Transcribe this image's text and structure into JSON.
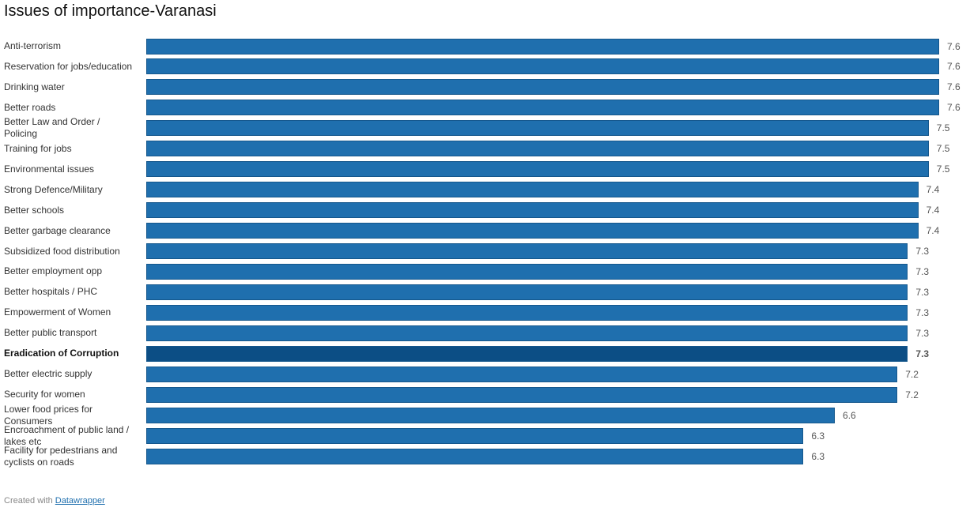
{
  "chart_data": {
    "type": "bar",
    "orientation": "horizontal",
    "title": "Issues of importance-Varanasi",
    "categories": [
      "Anti-terrorism",
      "Reservation for jobs/education",
      "Drinking water",
      "Better roads",
      "Better Law and Order / Policing",
      "Training for jobs",
      "Environmental issues",
      "Strong Defence/Military",
      "Better schools",
      "Better garbage clearance",
      "Subsidized food distribution",
      "Better employment opp",
      "Better hospitals / PHC",
      "Empowerment of Women",
      "Better public transport",
      "Eradication of Corruption",
      "Better electric supply",
      "Security for women",
      "Lower food prices for Consumers",
      "Encroachment of public land / lakes etc",
      "Facility for pedestrians and cyclists on roads"
    ],
    "values": [
      7.6,
      7.6,
      7.6,
      7.6,
      7.5,
      7.5,
      7.5,
      7.4,
      7.4,
      7.4,
      7.3,
      7.3,
      7.3,
      7.3,
      7.3,
      7.3,
      7.2,
      7.2,
      6.6,
      6.3,
      6.3
    ],
    "color": "#1f6fae",
    "highlight_color": "#0c4e85",
    "highlighted": [
      false,
      false,
      false,
      false,
      false,
      false,
      false,
      false,
      false,
      false,
      false,
      false,
      false,
      false,
      false,
      true,
      false,
      false,
      false,
      false,
      false
    ],
    "footer_text": "Created with",
    "footer_link": "Datawrapper"
  }
}
